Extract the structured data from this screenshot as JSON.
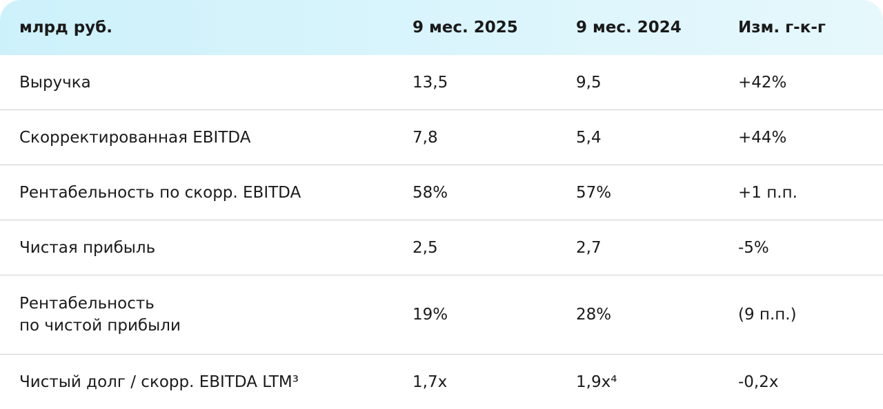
{
  "table": {
    "header": [
      "млрд руб.",
      "9 мес. 2025",
      "9 мес. 2024",
      "Изм. г-к-г"
    ],
    "rows": [
      [
        "Выручка",
        "13,5",
        "9,5",
        "+42%"
      ],
      [
        "Скорректированная EBITDA",
        "7,8",
        "5,4",
        "+44%"
      ],
      [
        "Рентабельность по скорр. EBITDA",
        "58%",
        "57%",
        "+1 п.п."
      ],
      [
        "Чистая прибыль",
        "2,5",
        "2,7",
        "-5%"
      ],
      [
        "Рентабельность\nпо чистой прибыли",
        "19%",
        "28%",
        "(9 п.п.)"
      ],
      [
        "Чистый долг / скорр. EBITDA LTM³",
        "1,7x",
        "1,9x⁴",
        "-0,2x"
      ]
    ]
  }
}
